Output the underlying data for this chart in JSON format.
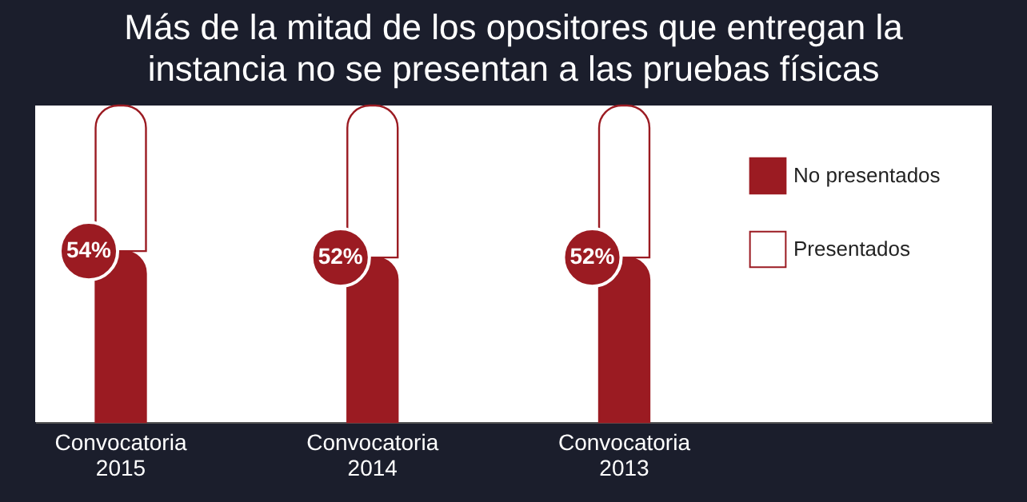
{
  "chart_data": {
    "type": "bar",
    "title": "Más de la mitad de los opositores que entregan la instancia no se presentan a las pruebas físicas",
    "categories": [
      "Convocatoria 2015",
      "Convocatoria 2014",
      "Convocatoria 2013"
    ],
    "stacked": true,
    "series": [
      {
        "name": "No presentados",
        "color": "#9b1b22",
        "values": [
          54,
          52,
          52
        ],
        "value_labels": [
          "54%",
          "52%",
          "52%"
        ]
      },
      {
        "name": "Presentados",
        "color": "#ffffff",
        "values": [
          46,
          48,
          48
        ]
      }
    ],
    "tick_labels": "x",
    "legend": "top right"
  }
}
